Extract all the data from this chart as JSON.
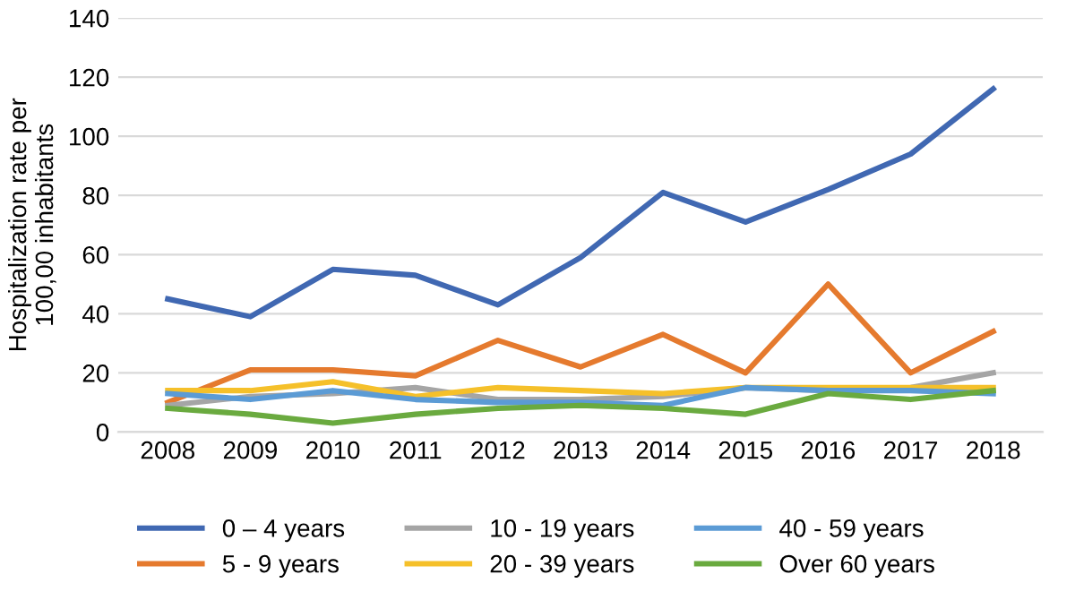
{
  "chart_data": {
    "type": "line",
    "ylabel": "Hospitalization rate per\n100,00 inhabitants",
    "categories": [
      "2008",
      "2009",
      "2010",
      "2011",
      "2012",
      "2013",
      "2014",
      "2015",
      "2016",
      "2017",
      "2018"
    ],
    "series": [
      {
        "name": "0 – 4 years",
        "color": "#4068b2",
        "values": [
          45,
          39,
          55,
          53,
          43,
          59,
          81,
          71,
          82,
          94,
          116
        ]
      },
      {
        "name": "5 - 9 years",
        "color": "#e57a2e",
        "values": [
          10,
          21,
          21,
          19,
          31,
          22,
          33,
          20,
          50,
          20,
          34
        ]
      },
      {
        "name": "10 - 19 years",
        "color": "#a5a5a5",
        "values": [
          9,
          12,
          13,
          15,
          11,
          11,
          12,
          15,
          14,
          15,
          20
        ]
      },
      {
        "name": "20 - 39 years",
        "color": "#f5c02a",
        "values": [
          14,
          14,
          17,
          12,
          15,
          14,
          13,
          15,
          15,
          15,
          15
        ]
      },
      {
        "name": "40 - 59 years",
        "color": "#5b9bd5",
        "values": [
          13,
          11,
          14,
          11,
          10,
          10,
          9,
          15,
          14,
          14,
          13
        ]
      },
      {
        "name": "Over 60 years",
        "color": "#6aaa3f",
        "values": [
          8,
          6,
          3,
          6,
          8,
          9,
          8,
          6,
          13,
          11,
          14
        ]
      }
    ],
    "ylim": [
      0,
      140
    ],
    "yticks": [
      0,
      20,
      40,
      60,
      80,
      100,
      120,
      140
    ],
    "grid": "y",
    "legend": "bottom",
    "marker": "none",
    "line_style": "solid"
  }
}
